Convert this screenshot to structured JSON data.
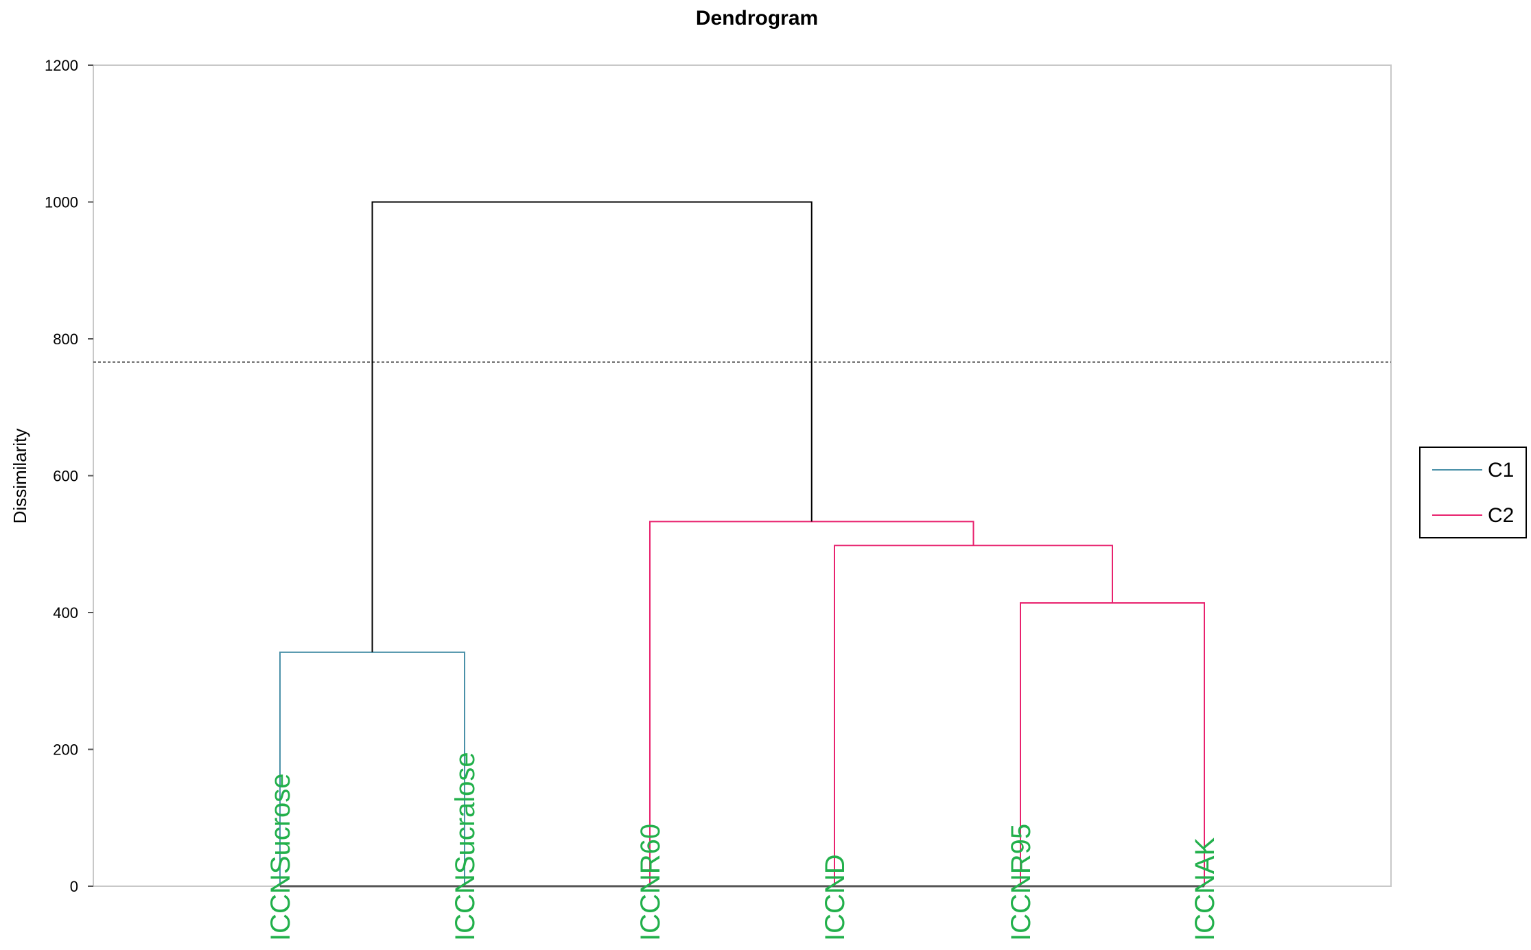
{
  "chart_data": {
    "type": "dendrogram",
    "title": "Dendrogram",
    "ylabel": "Dissimilarity",
    "ylim": [
      0,
      1200
    ],
    "yticks": [
      0,
      200,
      400,
      600,
      800,
      1000,
      1200
    ],
    "cut_line": 766,
    "leaves": [
      "ICCNSucrose",
      "ICCNSucralose",
      "ICCNR60",
      "ICCND",
      "ICCNR95",
      "ICCNAK"
    ],
    "merges": [
      {
        "a": "L0",
        "b": "L1",
        "height": 342,
        "cluster": "C1"
      },
      {
        "a": "L4",
        "b": "L5",
        "height": 414,
        "cluster": "C2"
      },
      {
        "a": "L3",
        "b": "M1",
        "height": 498,
        "cluster": "C2"
      },
      {
        "a": "L2",
        "b": "M2",
        "height": 533,
        "cluster": "C2"
      },
      {
        "a": "M0",
        "b": "M3",
        "height": 1000,
        "cluster": "root"
      }
    ],
    "clusters": [
      {
        "name": "C1",
        "color": "#4a90a8"
      },
      {
        "name": "C2",
        "color": "#e8226e"
      }
    ],
    "root_color": "#000000",
    "legend_position": "right"
  }
}
